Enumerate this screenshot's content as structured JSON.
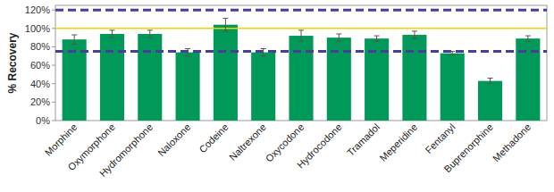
{
  "chart_data": {
    "type": "bar",
    "y_label": "% Recovery",
    "categories": [
      "Morphine",
      "Oxymorphone",
      "Hydromorphone",
      "Naloxone",
      "Codeine",
      "Naltrexone",
      "Oxycodone",
      "Hydrocodone",
      "Tramadol",
      "Meperidine",
      "Fentanyl",
      "Buprenorphine",
      "Methadone"
    ],
    "values": [
      88,
      94,
      94,
      74,
      104,
      74,
      92,
      90,
      89,
      93,
      73,
      43,
      89
    ],
    "errors": [
      5,
      4,
      4,
      4,
      7,
      4,
      6,
      4,
      3,
      4,
      2,
      3,
      3
    ],
    "color": "#00995a",
    "ylim": [
      0,
      125
    ],
    "yticks": [
      {
        "value": 0,
        "label": "0%"
      },
      {
        "value": 20,
        "label": "20%"
      },
      {
        "value": 40,
        "label": "40%"
      },
      {
        "value": 60,
        "label": "60%"
      },
      {
        "value": 80,
        "label": "80%"
      },
      {
        "value": 100,
        "label": "100%"
      },
      {
        "value": 120,
        "label": "120%"
      }
    ],
    "reference_lines": [
      {
        "value": 120,
        "color": "#4a3d9a",
        "line_style": "dashed"
      },
      {
        "value": 75,
        "color": "#4a3d9a",
        "line_style": "dashed"
      },
      {
        "value": 100,
        "color": "#f2d200",
        "line_style": "solid"
      }
    ],
    "grid": false
  }
}
